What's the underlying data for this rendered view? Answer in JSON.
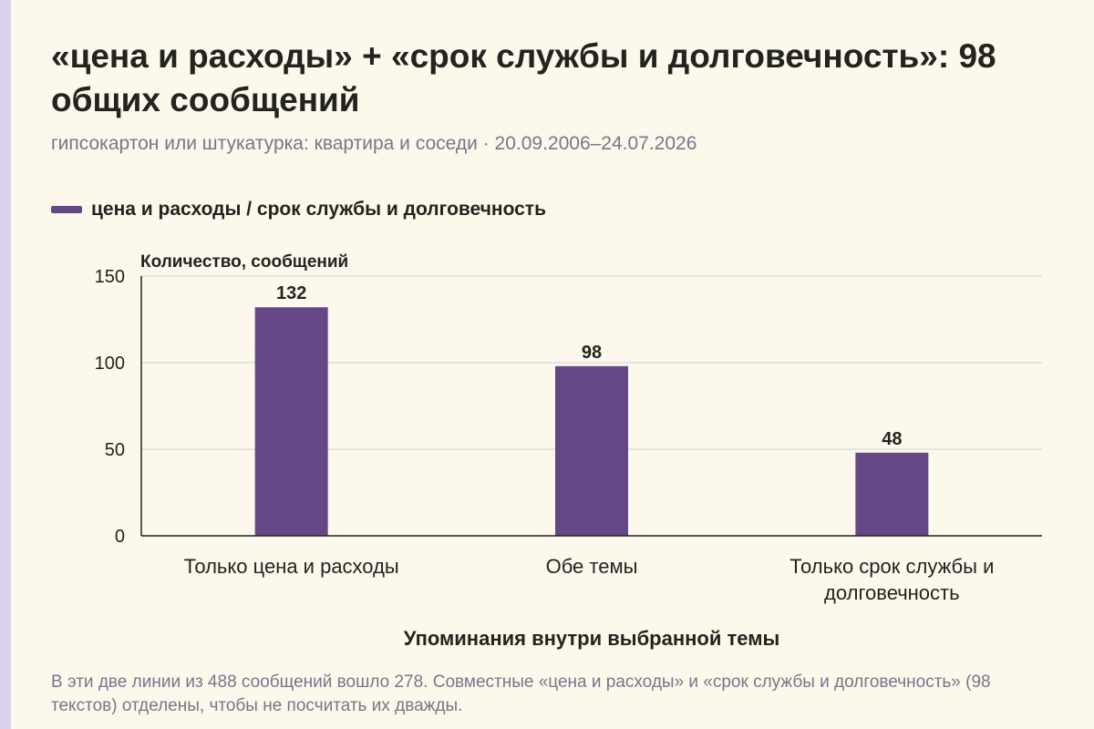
{
  "title": "«цена и расходы» + «срок службы и долговечность»: 98 общих сообщений",
  "subtitle": "гипсокартон или штукатурка: квартира и соседи · 20.09.2006–24.07.2026",
  "legend": {
    "label": "цена и расходы / срок службы и долговечность"
  },
  "colors": {
    "bar": "#664786",
    "grid": "#cfcfcf",
    "axis": "#222222",
    "background": "#fcf8ec"
  },
  "chart_data": {
    "type": "bar",
    "categories": [
      [
        "Только цена и расходы"
      ],
      [
        "Обе темы"
      ],
      [
        "Только срок службы и",
        "долговечность"
      ]
    ],
    "values": [
      132,
      98,
      48
    ],
    "value_labels": [
      "132",
      "98",
      "48"
    ],
    "ylabel": "Количество, сообщений",
    "xlabel": "Упоминания внутри выбранной темы",
    "ylim": [
      0,
      150
    ],
    "yticks": [
      0,
      50,
      100,
      150
    ],
    "grid": true,
    "legend_position": "top-left"
  },
  "footnote": "В эти две линии из 488 сообщений вошло 278. Совместные «цена и расходы» и «срок службы и долговечность» (98 текстов) отделены, чтобы не посчитать их дважды."
}
